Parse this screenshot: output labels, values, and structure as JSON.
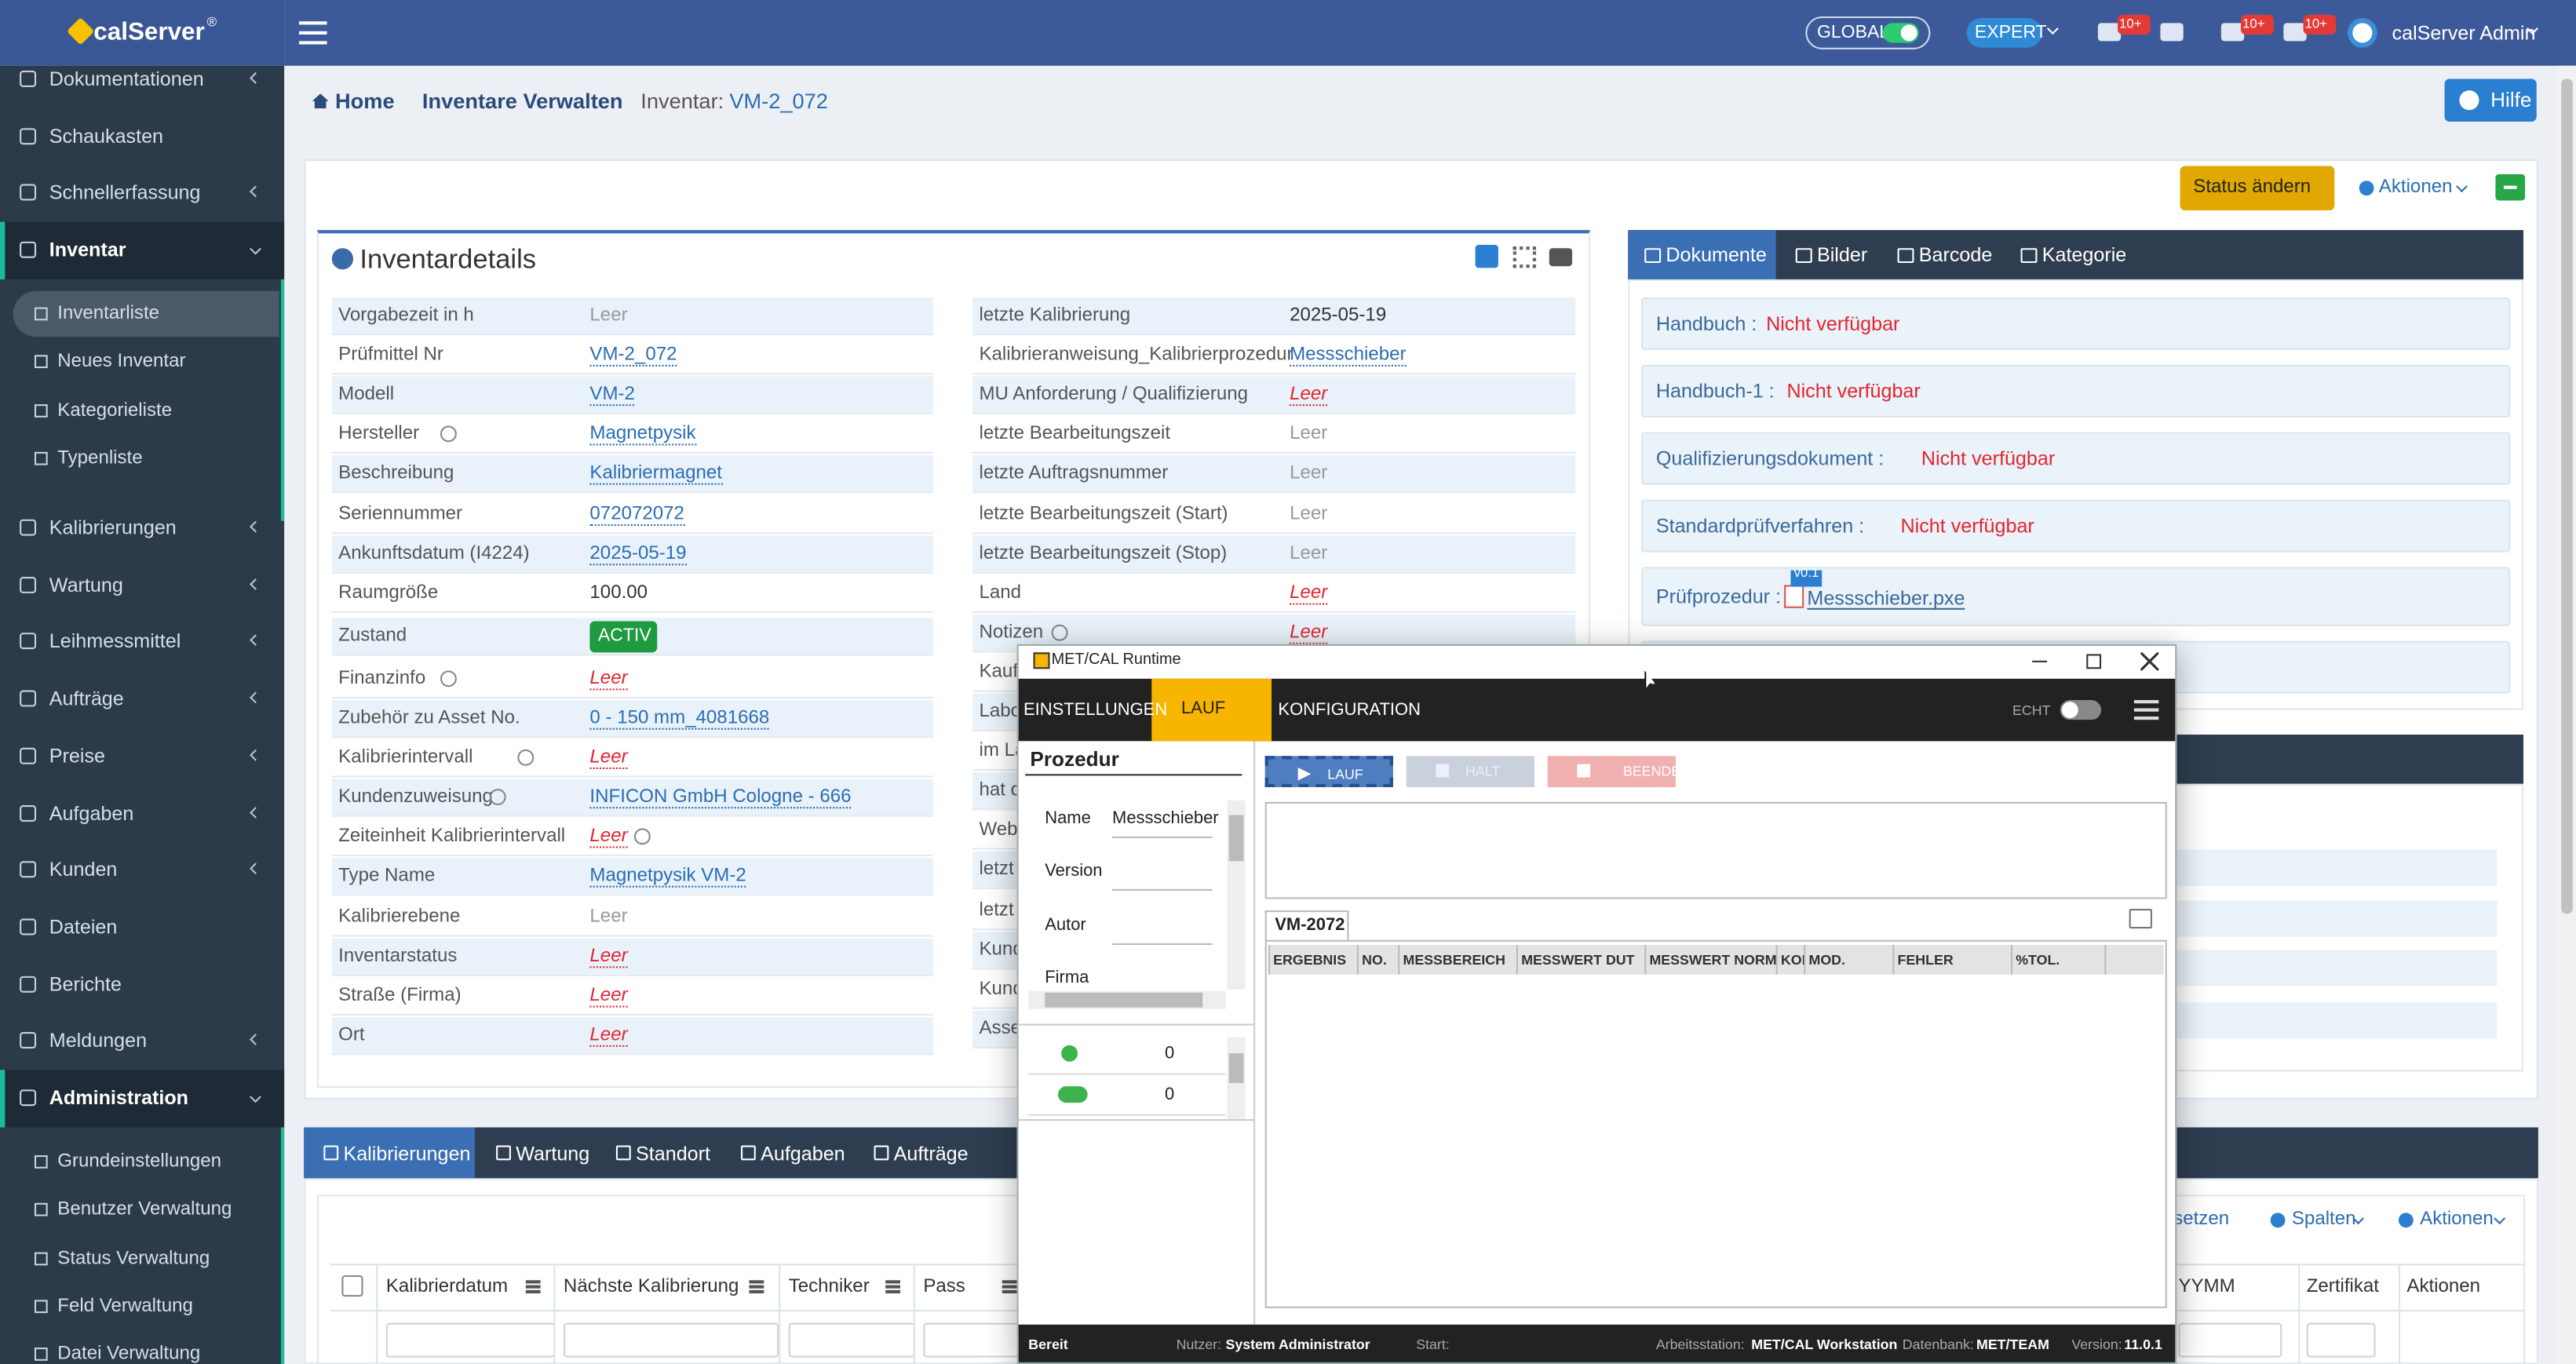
{
  "brand": "calServer",
  "brand_mark": "®",
  "topbar": {
    "global": "GLOBAL",
    "expert": "EXPERT",
    "badges": [
      "10+",
      "10+",
      "10+"
    ],
    "user": "calServer Admin"
  },
  "sidebar": [
    {
      "label": "Dokumentationen",
      "submenu": true
    },
    {
      "label": "Schaukasten"
    },
    {
      "label": "Schnellerfassung",
      "submenu": true
    },
    {
      "label": "Inventar",
      "submenu": true,
      "active": true,
      "children": [
        {
          "label": "Inventarliste",
          "active": true
        },
        {
          "label": "Neues Inventar"
        },
        {
          "label": "Kategorieliste"
        },
        {
          "label": "Typenliste"
        }
      ]
    },
    {
      "label": "Kalibrierungen",
      "submenu": true
    },
    {
      "label": "Wartung",
      "submenu": true
    },
    {
      "label": "Leihmessmittel",
      "submenu": true
    },
    {
      "label": "Aufträge",
      "submenu": true
    },
    {
      "label": "Preise",
      "submenu": true
    },
    {
      "label": "Aufgaben",
      "submenu": true
    },
    {
      "label": "Kunden",
      "submenu": true
    },
    {
      "label": "Dateien"
    },
    {
      "label": "Berichte"
    },
    {
      "label": "Meldungen",
      "submenu": true
    },
    {
      "label": "Administration",
      "submenu": true,
      "active": true,
      "children": [
        {
          "label": "Grundeinstellungen"
        },
        {
          "label": "Benutzer Verwaltung"
        },
        {
          "label": "Status Verwaltung"
        },
        {
          "label": "Feld Verwaltung"
        },
        {
          "label": "Datei Verwaltung"
        }
      ]
    }
  ],
  "breadcrumb": {
    "items": [
      "Home",
      "Inventare Verwalten",
      "Inventar:"
    ],
    "current": "VM-2_072"
  },
  "help": "Hilfe",
  "toolbar": {
    "status": "Status ändern",
    "actions": "Aktionen"
  },
  "details": {
    "title": "Inventardetails",
    "left": [
      {
        "label": "Vorgabezeit in h",
        "value": "Leer",
        "kind": "empty"
      },
      {
        "label": "Prüfmittel Nr",
        "value": "VM-2_072",
        "kind": "link"
      },
      {
        "label": "Modell",
        "value": "VM-2",
        "kind": "link"
      },
      {
        "label": "Hersteller",
        "value": "Magnetpysik",
        "kind": "link",
        "help": true
      },
      {
        "label": "Beschreibung",
        "value": "Kalibriermagnet",
        "kind": "link"
      },
      {
        "label": "Seriennummer",
        "value": "072072072",
        "kind": "link"
      },
      {
        "label": "Ankunftsdatum (I4224)",
        "value": "2025-05-19",
        "kind": "link"
      },
      {
        "label": "Raumgröße",
        "value": "100.00",
        "kind": "text"
      },
      {
        "label": "Zustand",
        "value": "ACTIV",
        "kind": "badge"
      },
      {
        "label": "Finanzinfo",
        "value": "Leer",
        "kind": "missing",
        "help": true
      },
      {
        "label": "Zubehör zu Asset No.",
        "value": "0 - 150 mm_4081668",
        "kind": "link"
      },
      {
        "label": "Kalibrierintervall",
        "value": "Leer",
        "kind": "missing",
        "help": true
      },
      {
        "label": "Kundenzuweisung",
        "value": "INFICON GmbH Cologne - 666",
        "kind": "link",
        "help": true
      },
      {
        "label": "Zeiteinheit Kalibrierintervall",
        "value": "Leer",
        "kind": "missing",
        "help": true
      },
      {
        "label": "Type Name",
        "value": "Magnetpysik VM-2",
        "kind": "link"
      },
      {
        "label": "Kalibrierebene",
        "value": "Leer",
        "kind": "empty"
      },
      {
        "label": "Inventarstatus",
        "value": "Leer",
        "kind": "missing"
      },
      {
        "label": "Straße (Firma)",
        "value": "Leer",
        "kind": "missing"
      },
      {
        "label": "Ort",
        "value": "Leer",
        "kind": "missing"
      }
    ],
    "right": [
      {
        "label": "letzte Kalibrierung",
        "value": "2025-05-19",
        "kind": "text"
      },
      {
        "label": "Kalibrieranweisung_Kalibrierprozedur",
        "value": "Messschieber",
        "kind": "link"
      },
      {
        "label": "MU Anforderung / Qualifizierung",
        "value": "Leer",
        "kind": "missing"
      },
      {
        "label": "letzte Bearbeitungszeit",
        "value": "Leer",
        "kind": "empty"
      },
      {
        "label": "letzte Auftragsnummer",
        "value": "Leer",
        "kind": "empty"
      },
      {
        "label": "letzte Bearbeitungszeit (Start)",
        "value": "Leer",
        "kind": "empty"
      },
      {
        "label": "letzte Bearbeitungszeit (Stop)",
        "value": "Leer",
        "kind": "empty"
      },
      {
        "label": "Land",
        "value": "Leer",
        "kind": "missing"
      },
      {
        "label": "Notizen",
        "value": "Leer",
        "kind": "missing",
        "help": true
      },
      {
        "label": "Kauf"
      },
      {
        "label": "Labo"
      },
      {
        "label": "im La"
      },
      {
        "label": "hat c"
      },
      {
        "label": "Web"
      },
      {
        "label": "letzt"
      },
      {
        "label": "letzt"
      },
      {
        "label": "Kund"
      },
      {
        "label": "Kund"
      },
      {
        "label": "Asse"
      }
    ]
  },
  "doc_tabs": [
    "Dokumente",
    "Bilder",
    "Barcode",
    "Kategorie"
  ],
  "documents": [
    {
      "label": "Handbuch :",
      "value": "Nicht verfügbar"
    },
    {
      "label": "Handbuch-1 :",
      "value": "Nicht verfügbar"
    },
    {
      "label": "Qualifizierungsdokument :",
      "value": "Nicht verfügbar"
    },
    {
      "label": "Standardprüfverfahren :",
      "value": "Nicht verfügbar"
    }
  ],
  "procedure_doc": {
    "label": "Prüfprozedur :",
    "version": "v0.1",
    "file": "Messschieber.pxe"
  },
  "bottom_tabs": [
    "Kalibrierungen",
    "Wartung",
    "Standort",
    "Aufgaben",
    "Aufträge"
  ],
  "bottom_toolbar": [
    "setzen",
    "Spalten",
    "Aktionen"
  ],
  "columns_left": [
    "Kalibrierdatum",
    "Nächste Kalibrierung",
    "Techniker",
    "Pass"
  ],
  "columns_right": [
    "YYMM",
    "Zertifikat",
    "Aktionen"
  ],
  "dialog": {
    "title": "MET/CAL Runtime",
    "menu": [
      "EINSTELLUNGEN",
      "LAUF",
      "KONFIGURATION"
    ],
    "toggle": "ECHT",
    "panel_title": "Prozedur",
    "fields": [
      {
        "label": "Name",
        "value": "Messschieber"
      },
      {
        "label": "Version"
      },
      {
        "label": "Autor"
      },
      {
        "label": "Firma"
      }
    ],
    "counts": [
      0,
      0
    ],
    "buttons": [
      "LAUF",
      "HALT",
      "BEENDEN"
    ],
    "tab": "VM-2072",
    "columns": [
      "ERGEBNIS",
      "NO.",
      "MESSBEREICH",
      "MESSWERT DUT",
      "MESSWERT NORM",
      "KOI",
      "MOD.",
      "FEHLER",
      "%TOL."
    ],
    "status": {
      "state": "Bereit",
      "user_label": "Nutzer:",
      "user": "System Administrator",
      "start_label": "Start:",
      "ws_label": "Arbeitsstation:",
      "ws": "MET/CAL Workstation",
      "db_label": "Datenbank:",
      "db": "MET/TEAM",
      "ver_label": "Version:",
      "ver": "11.0.1"
    }
  }
}
